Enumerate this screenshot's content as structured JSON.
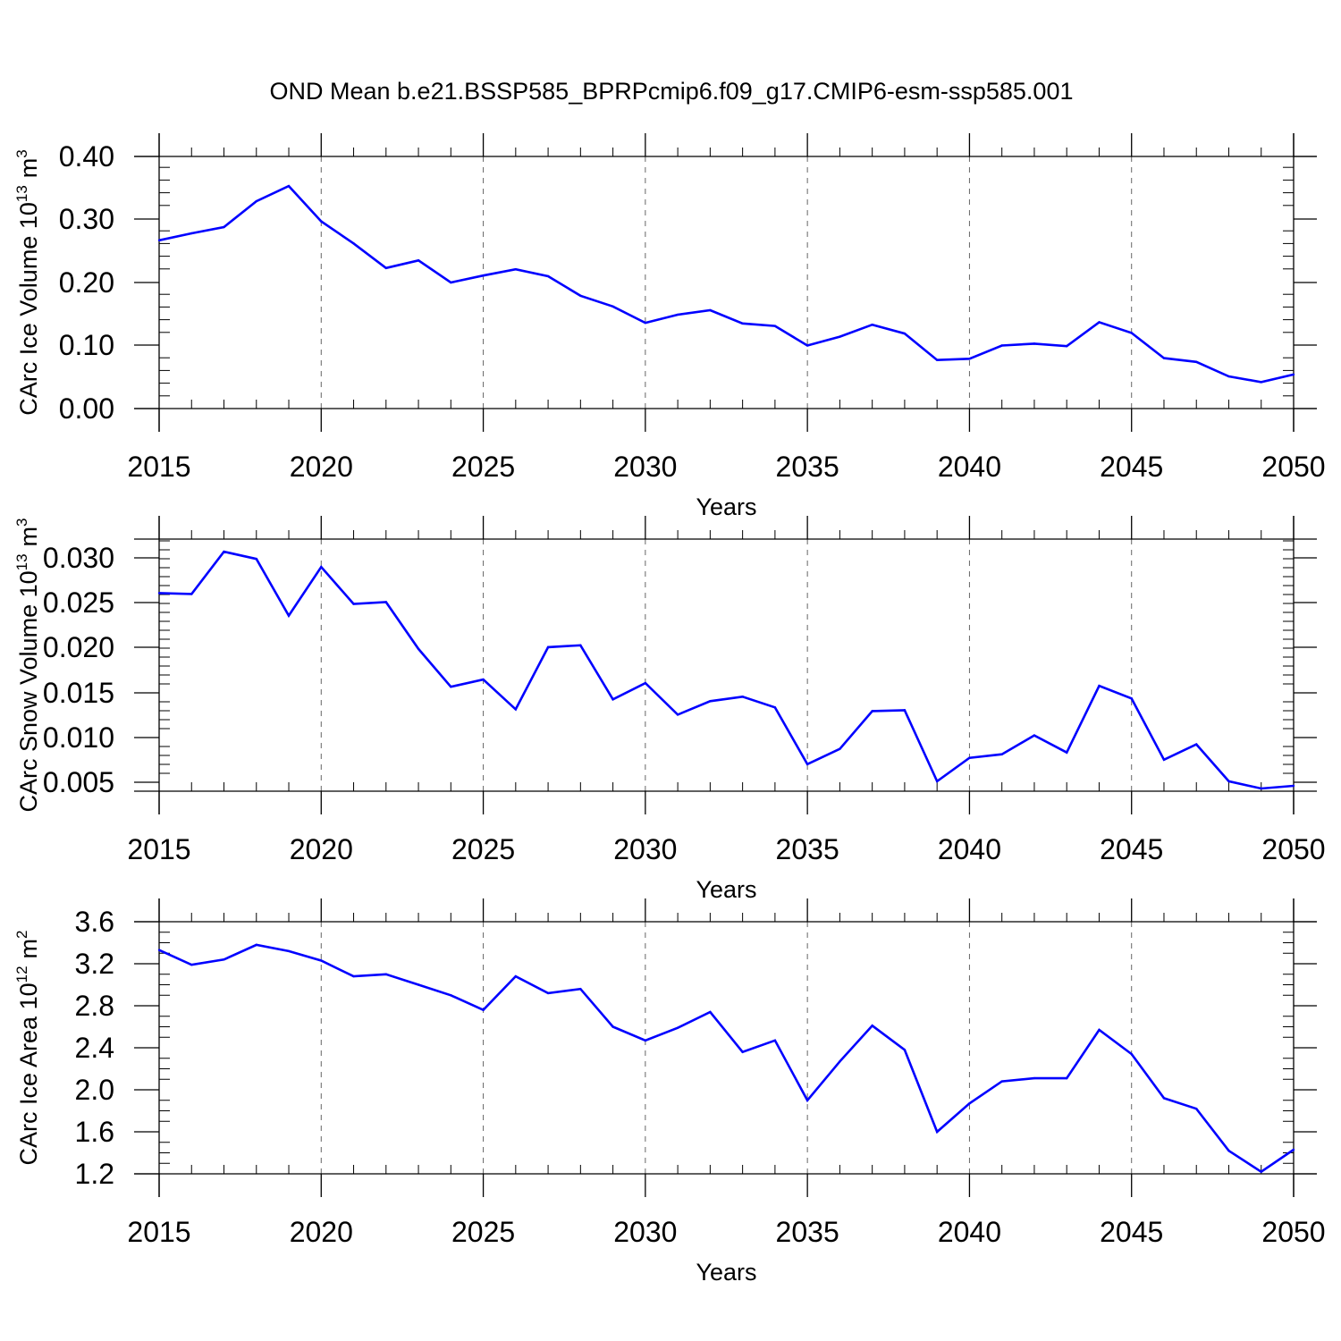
{
  "title": "OND Mean b.e21.BSSP585_BPRPcmip6.f09_g17.CMIP6-esm-ssp585.001",
  "colors": {
    "series": "#0000ff",
    "axis": "#000000",
    "grid": "#666666"
  },
  "chart_data": [
    {
      "type": "line",
      "xlabel": "Years",
      "ylabel_text": "CArc Ice Volume 10",
      "ylabel_exp": "13",
      "ylabel_unit": "m",
      "ylabel_unit_exp": "3",
      "xlim": [
        2015,
        2050
      ],
      "ylim": [
        0.0,
        0.4
      ],
      "xticks": [
        "2015",
        "2020",
        "2025",
        "2030",
        "2035",
        "2040",
        "2045",
        "2050"
      ],
      "yticks": [
        "0.00",
        "0.10",
        "0.20",
        "0.30",
        "0.40"
      ],
      "grid": "vertical dashed",
      "x": [
        2015,
        2016,
        2017,
        2018,
        2019,
        2020,
        2021,
        2022,
        2023,
        2024,
        2025,
        2026,
        2027,
        2028,
        2029,
        2030,
        2031,
        2032,
        2033,
        2034,
        2035,
        2036,
        2037,
        2038,
        2039,
        2040,
        2041,
        2042,
        2043,
        2044,
        2045,
        2046,
        2047,
        2048,
        2049,
        2050
      ],
      "values": [
        0.267,
        0.278,
        0.288,
        0.329,
        0.353,
        0.297,
        0.262,
        0.223,
        0.235,
        0.2,
        0.211,
        0.221,
        0.21,
        0.179,
        0.162,
        0.136,
        0.149,
        0.156,
        0.135,
        0.131,
        0.1,
        0.114,
        0.133,
        0.119,
        0.077,
        0.079,
        0.1,
        0.103,
        0.099,
        0.137,
        0.12,
        0.08,
        0.074,
        0.051,
        0.042,
        0.054
      ]
    },
    {
      "type": "line",
      "xlabel": "Years",
      "ylabel_text": "CArc Snow Volume 10",
      "ylabel_exp": "13",
      "ylabel_unit": "m",
      "ylabel_unit_exp": "3",
      "xlim": [
        2015,
        2050
      ],
      "ylim": [
        0.004,
        0.032
      ],
      "xticks": [
        "2015",
        "2020",
        "2025",
        "2030",
        "2035",
        "2040",
        "2045",
        "2050"
      ],
      "yticks": [
        "0.005",
        "0.010",
        "0.015",
        "0.020",
        "0.025",
        "0.030"
      ],
      "grid": "vertical dashed",
      "x": [
        2015,
        2016,
        2017,
        2018,
        2019,
        2020,
        2021,
        2022,
        2023,
        2024,
        2025,
        2026,
        2027,
        2028,
        2029,
        2030,
        2031,
        2032,
        2033,
        2034,
        2035,
        2036,
        2037,
        2038,
        2039,
        2040,
        2041,
        2042,
        2043,
        2044,
        2045,
        2046,
        2047,
        2048,
        2049,
        2050
      ],
      "values": [
        0.026,
        0.0259,
        0.0306,
        0.0298,
        0.0235,
        0.0289,
        0.0248,
        0.025,
        0.0198,
        0.0156,
        0.0164,
        0.0131,
        0.02,
        0.0202,
        0.0142,
        0.016,
        0.0125,
        0.014,
        0.0145,
        0.0133,
        0.007,
        0.0087,
        0.0129,
        0.013,
        0.0051,
        0.0077,
        0.0081,
        0.0102,
        0.0083,
        0.0157,
        0.0143,
        0.0075,
        0.0092,
        0.0051,
        0.0043,
        0.0046
      ]
    },
    {
      "type": "line",
      "xlabel": "Years",
      "ylabel_text": "CArc Ice Area 10",
      "ylabel_exp": "12",
      "ylabel_unit": "m",
      "ylabel_unit_exp": "2",
      "xlim": [
        2015,
        2050
      ],
      "ylim": [
        1.2,
        3.6
      ],
      "xticks": [
        "2015",
        "2020",
        "2025",
        "2030",
        "2035",
        "2040",
        "2045",
        "2050"
      ],
      "yticks": [
        "1.2",
        "1.6",
        "2.0",
        "2.4",
        "2.8",
        "3.2",
        "3.6"
      ],
      "grid": "vertical dashed",
      "x": [
        2015,
        2016,
        2017,
        2018,
        2019,
        2020,
        2021,
        2022,
        2023,
        2024,
        2025,
        2026,
        2027,
        2028,
        2029,
        2030,
        2031,
        2032,
        2033,
        2034,
        2035,
        2036,
        2037,
        2038,
        2039,
        2040,
        2041,
        2042,
        2043,
        2044,
        2045,
        2046,
        2047,
        2048,
        2049,
        2050
      ],
      "values": [
        3.33,
        3.19,
        3.24,
        3.38,
        3.32,
        3.23,
        3.08,
        3.1,
        3.0,
        2.9,
        2.76,
        3.08,
        2.92,
        2.96,
        2.6,
        2.47,
        2.59,
        2.74,
        2.36,
        2.47,
        1.9,
        2.27,
        2.61,
        2.38,
        1.6,
        1.87,
        2.08,
        2.11,
        2.11,
        2.57,
        2.34,
        1.92,
        1.82,
        1.42,
        1.22,
        1.43
      ]
    }
  ]
}
